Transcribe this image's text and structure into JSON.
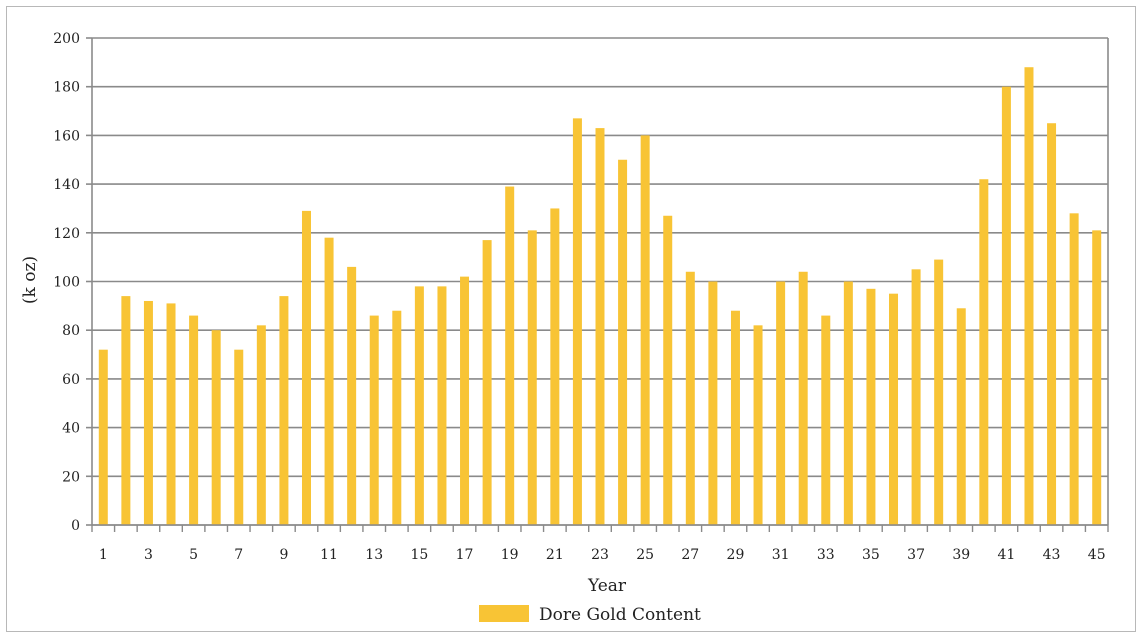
{
  "chart_data": {
    "type": "bar",
    "title": "",
    "xlabel": "Year",
    "ylabel": "(k oz)",
    "ylim": [
      0,
      200
    ],
    "yticks": [
      0,
      20,
      40,
      60,
      80,
      100,
      120,
      140,
      160,
      180,
      200
    ],
    "grid": "horizontal",
    "legend_position": "bottom",
    "bar_color": "#f8c435",
    "categories": [
      "1",
      "2",
      "3",
      "4",
      "5",
      "6",
      "7",
      "8",
      "9",
      "10",
      "11",
      "12",
      "13",
      "14",
      "15",
      "16",
      "17",
      "18",
      "19",
      "20",
      "21",
      "22",
      "23",
      "24",
      "25",
      "26",
      "27",
      "28",
      "29",
      "30",
      "31",
      "32",
      "33",
      "34",
      "35",
      "36",
      "37",
      "38",
      "39",
      "40",
      "41",
      "42",
      "43",
      "44",
      "45"
    ],
    "visible_xtick_labels": [
      "1",
      "3",
      "5",
      "7",
      "9",
      "11",
      "13",
      "15",
      "17",
      "19",
      "21",
      "23",
      "25",
      "27",
      "29",
      "31",
      "33",
      "35",
      "37",
      "39",
      "41",
      "43",
      "45"
    ],
    "series": [
      {
        "name": "Dore Gold Content",
        "values": [
          72,
          94,
          92,
          91,
          86,
          80,
          72,
          82,
          94,
          129,
          118,
          106,
          86,
          88,
          98,
          98,
          102,
          117,
          139,
          121,
          130,
          167,
          163,
          150,
          160,
          127,
          104,
          100,
          88,
          82,
          100,
          104,
          86,
          100,
          97,
          95,
          105,
          109,
          89,
          142,
          180,
          188,
          165,
          128,
          121
        ]
      }
    ]
  }
}
